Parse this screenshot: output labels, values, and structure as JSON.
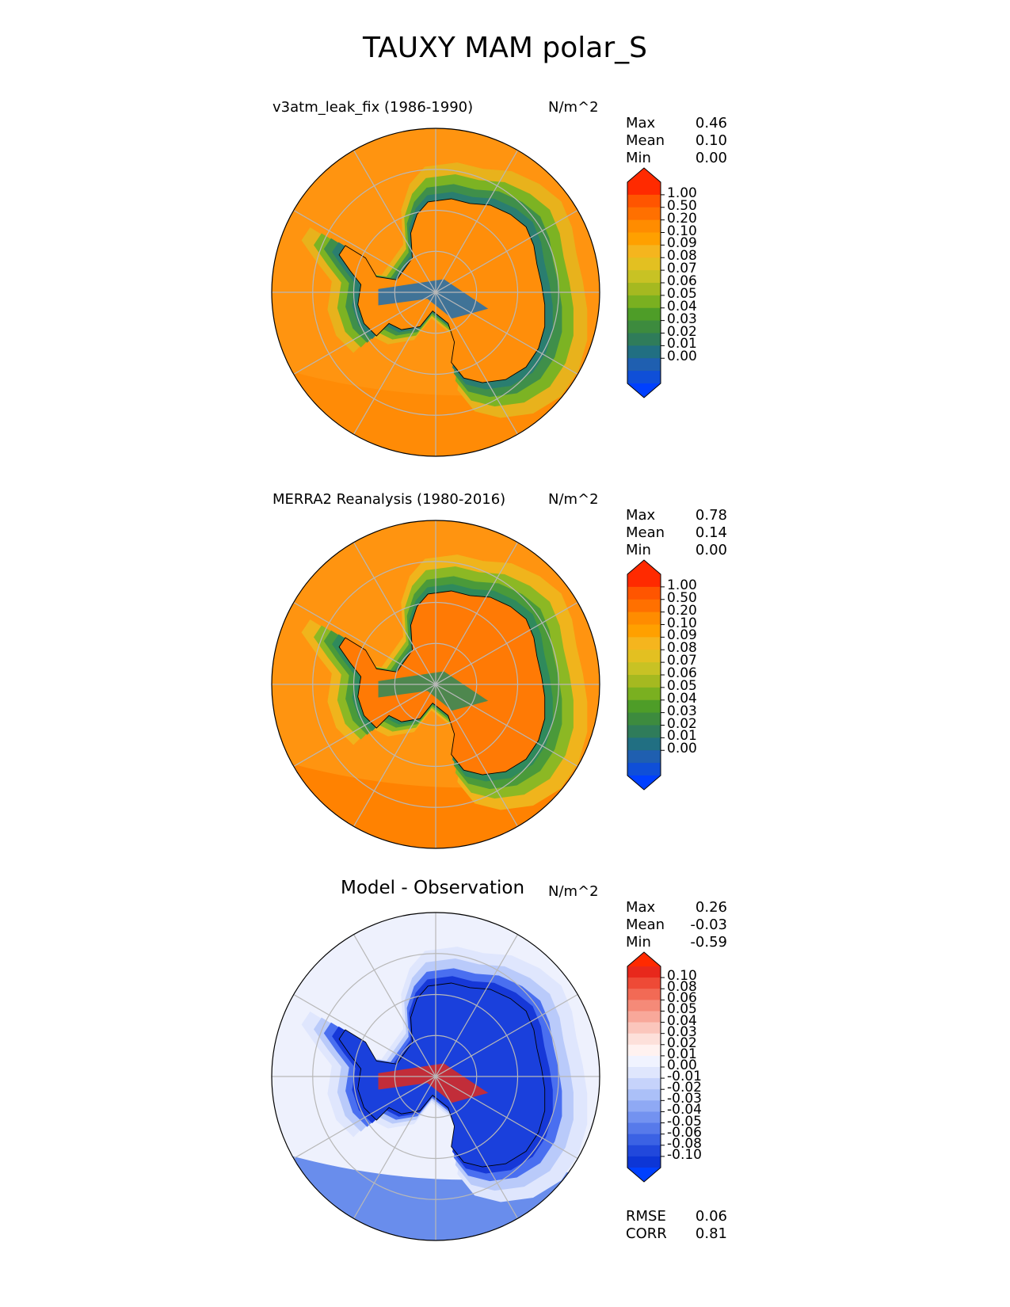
{
  "figure": {
    "title": "TAUXY MAM polar_S"
  },
  "chart_data": [
    {
      "type": "heatmap",
      "projection": "south-polar-stereographic",
      "title": "v3atm_leak_fix (1986-1990)",
      "units": "N/m^2",
      "stats": [
        {
          "label": "Max",
          "value": "0.46"
        },
        {
          "label": "Mean",
          "value": "0.10"
        },
        {
          "label": "Min",
          "value": "0.00"
        }
      ],
      "colorbar": {
        "ticks": [
          "1.00",
          "0.50",
          "0.20",
          "0.10",
          "0.09",
          "0.08",
          "0.07",
          "0.06",
          "0.05",
          "0.04",
          "0.03",
          "0.02",
          "0.01",
          "0.00"
        ],
        "colors": [
          "#ff2a00",
          "#ff5500",
          "#ff7000",
          "#ff8c00",
          "#ffa000",
          "#f5b51e",
          "#e3c021",
          "#c8c224",
          "#a5b920",
          "#7ab020",
          "#4e9d28",
          "#3d8b3e",
          "#2f7c5a",
          "#216f82",
          "#1f5fb0",
          "#0f4fd8"
        ],
        "over_color": "#ff2a00",
        "under_color": "#0040ff"
      },
      "field": {
        "ocean_color": "#ff9410",
        "outer_band_color": "#ff8a05",
        "ring_colors": [
          "#e8b21c",
          "#7cb323",
          "#3f8f4a",
          "#2a7e70"
        ],
        "interior_color": "#ff8e0a",
        "trough_color": "#1f6fb0"
      }
    },
    {
      "type": "heatmap",
      "projection": "south-polar-stereographic",
      "title": "MERRA2 Reanalysis (1980-2016)",
      "units": "N/m^2",
      "stats": [
        {
          "label": "Max",
          "value": "0.78"
        },
        {
          "label": "Mean",
          "value": "0.14"
        },
        {
          "label": "Min",
          "value": "0.00"
        }
      ],
      "colorbar": {
        "ticks": [
          "1.00",
          "0.50",
          "0.20",
          "0.10",
          "0.09",
          "0.08",
          "0.07",
          "0.06",
          "0.05",
          "0.04",
          "0.03",
          "0.02",
          "0.01",
          "0.00"
        ],
        "colors": [
          "#ff2a00",
          "#ff5500",
          "#ff7000",
          "#ff8c00",
          "#ffa000",
          "#f5b51e",
          "#e3c021",
          "#c8c224",
          "#a5b920",
          "#7ab020",
          "#4e9d28",
          "#3d8b3e",
          "#2f7c5a",
          "#216f82",
          "#1f5fb0",
          "#0f4fd8"
        ],
        "over_color": "#ff2a00",
        "under_color": "#0040ff"
      },
      "field": {
        "ocean_color": "#ff9410",
        "outer_band_color": "#ff8000",
        "ring_colors": [
          "#f0b41c",
          "#8cb824",
          "#4a9a3a",
          "#2f8a5c"
        ],
        "interior_color": "#ff7a05",
        "trough_color": "#2f8a5c"
      }
    },
    {
      "type": "heatmap",
      "projection": "south-polar-stereographic",
      "title": "Model - Observation",
      "units": "N/m^2",
      "stats": [
        {
          "label": "Max",
          "value": "0.26"
        },
        {
          "label": "Mean",
          "value": "-0.03"
        },
        {
          "label": "Min",
          "value": "-0.59"
        }
      ],
      "metrics": [
        {
          "label": "RMSE",
          "value": "0.06"
        },
        {
          "label": "CORR",
          "value": "0.81"
        }
      ],
      "colorbar": {
        "ticks": [
          "0.10",
          "0.08",
          "0.06",
          "0.05",
          "0.04",
          "0.03",
          "0.02",
          "0.01",
          "0.00",
          "-0.01",
          "-0.02",
          "-0.03",
          "-0.04",
          "-0.05",
          "-0.06",
          "-0.08",
          "-0.10"
        ],
        "colors": [
          "#e8281c",
          "#ee4a36",
          "#f26a55",
          "#f58a78",
          "#f8a89a",
          "#fbc6bc",
          "#fde0da",
          "#fff2f0",
          "#f0f3ff",
          "#dfe6fd",
          "#c6d3fb",
          "#abc0f8",
          "#8fa9f4",
          "#7392f0",
          "#577aea",
          "#3b62e4",
          "#2148dc",
          "#0d36d6"
        ],
        "over_color": "#ff2a00",
        "under_color": "#0040ff"
      },
      "field": {
        "ocean_color": "#eef1fd",
        "outer_band_color": "#5a82ea",
        "ring_colors": [
          "#dfe6fd",
          "#b9cafa",
          "#4a6ff0",
          "#1638d8"
        ],
        "interior_color": "#1a40dc",
        "trough_color": "#e02a1c"
      }
    }
  ]
}
